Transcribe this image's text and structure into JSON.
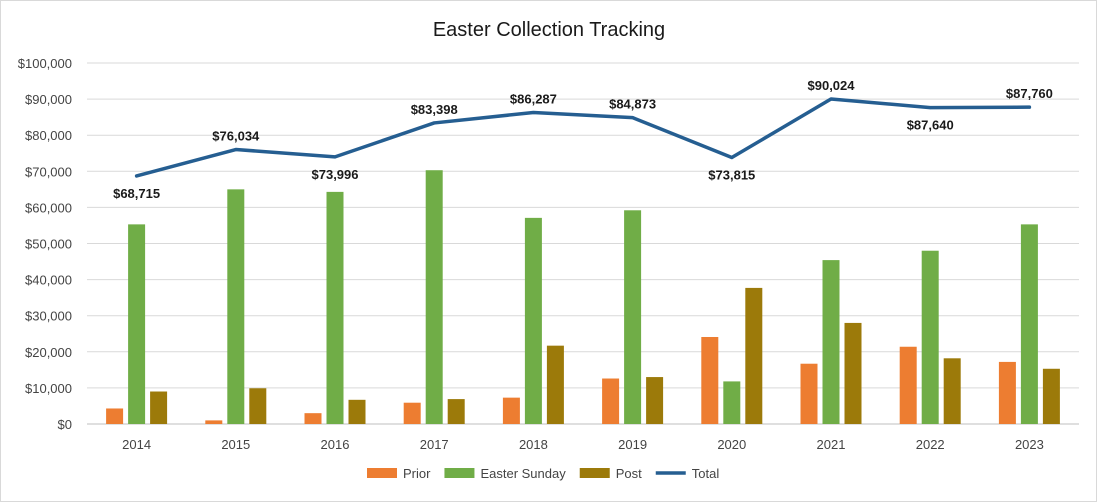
{
  "chart_data": {
    "type": "bar",
    "title": "Easter Collection Tracking",
    "categories": [
      "2014",
      "2015",
      "2016",
      "2017",
      "2018",
      "2019",
      "2020",
      "2021",
      "2022",
      "2023"
    ],
    "ylim": [
      0,
      100000
    ],
    "y_ticks": [
      0,
      10000,
      20000,
      30000,
      40000,
      50000,
      60000,
      70000,
      80000,
      90000,
      100000
    ],
    "y_tick_labels": [
      "$0",
      "$10,000",
      "$20,000",
      "$30,000",
      "$40,000",
      "$50,000",
      "$60,000",
      "$70,000",
      "$80,000",
      "$90,000",
      "$100,000"
    ],
    "grid": true,
    "legend_position": "bottom",
    "series": [
      {
        "name": "Prior",
        "kind": "bar",
        "color": "#ED7D31",
        "values": [
          4300,
          1000,
          3000,
          5900,
          7300,
          12600,
          24100,
          16700,
          21400,
          17200
        ]
      },
      {
        "name": "Easter Sunday",
        "kind": "bar",
        "color": "#70AD47",
        "values": [
          55300,
          65000,
          64300,
          70300,
          57100,
          59200,
          11800,
          45400,
          48000,
          55300
        ]
      },
      {
        "name": "Post",
        "kind": "bar",
        "color": "#9C7A0A",
        "values": [
          9000,
          9900,
          6700,
          6900,
          21700,
          13000,
          37700,
          28000,
          18200,
          15300
        ]
      },
      {
        "name": "Total",
        "kind": "line",
        "color": "#255E91",
        "values": [
          68715,
          76034,
          73996,
          83398,
          86287,
          84873,
          73815,
          90024,
          87640,
          87760
        ],
        "data_labels": [
          "$68,715",
          "$76,034",
          "$73,996",
          "$83,398",
          "$86,287",
          "$84,873",
          "$73,815",
          "$90,024",
          "$87,640",
          "$87,760"
        ],
        "label_positions": [
          "below",
          "above",
          "below",
          "above",
          "above",
          "above",
          "below",
          "above",
          "below",
          "above"
        ]
      }
    ]
  }
}
